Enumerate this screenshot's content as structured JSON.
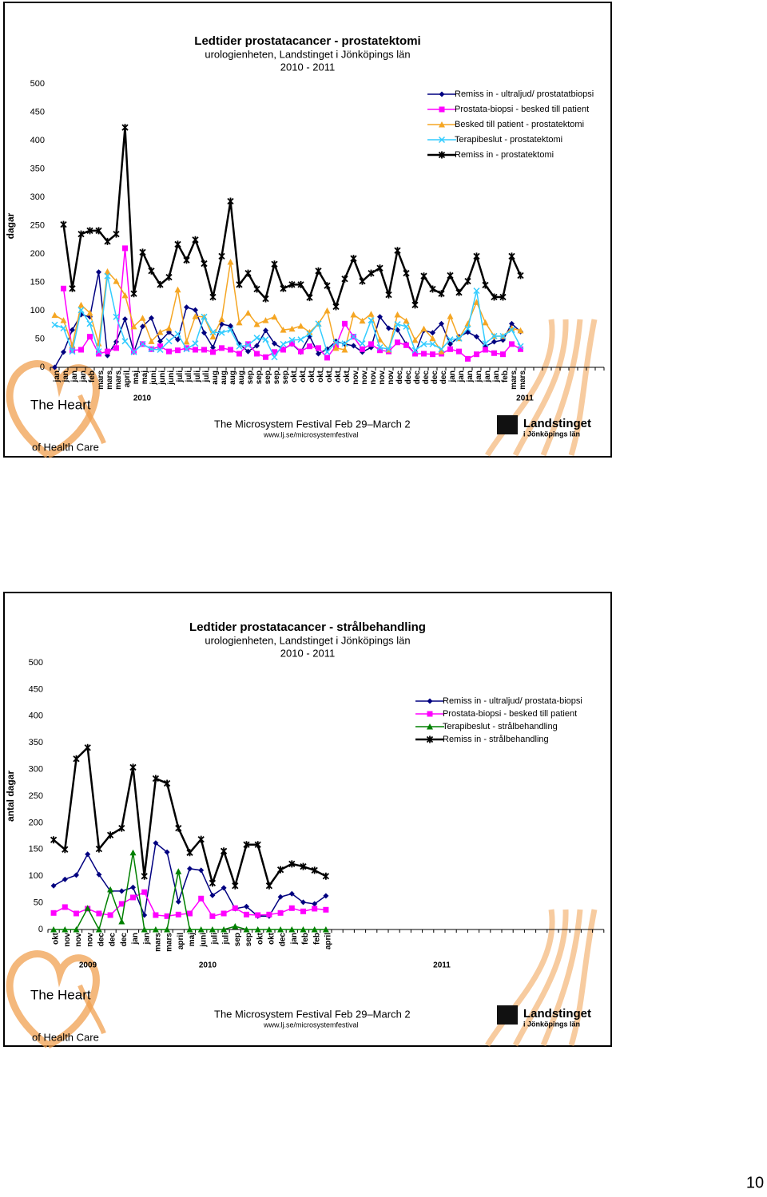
{
  "chart_data": [
    {
      "type": "line",
      "title": "Ledtider prostatacancer - prostatektomi",
      "subtitle": "urologienheten, Landstinget i Jönköpings län",
      "period": "2010 - 2011",
      "y_label": "dagar",
      "year_labels": [
        "2010",
        "2011"
      ],
      "ylim": [
        0,
        500
      ],
      "yticks": [
        0,
        50,
        100,
        150,
        200,
        250,
        300,
        350,
        400,
        450,
        500
      ],
      "grid": false,
      "legend": "upper right",
      "categories": [
        "jan",
        "jan",
        "jan",
        "jan",
        "feb",
        "mars",
        "mars",
        "mars",
        "april",
        "maj",
        "maj",
        "juni",
        "juni",
        "juni",
        "juli",
        "juli",
        "juli",
        "juli",
        "aug",
        "aug",
        "aug",
        "aug",
        "sep",
        "sep",
        "sep",
        "sep",
        "sep",
        "okt",
        "okt",
        "okt",
        "okt",
        "okt",
        "okt",
        "okt",
        "nov",
        "nov",
        "nov",
        "nov",
        "nov",
        "dec",
        "dec",
        "dec",
        "dec",
        "dec",
        "dec",
        "jan",
        "jan",
        "jan",
        "jan",
        "jan",
        "jan",
        "feb",
        "mars",
        "mars",
        null,
        null,
        null,
        null,
        null,
        null,
        null,
        null,
        null
      ],
      "series": [
        {
          "name": "Remiss in - ultraljud/ prostatatbiopsi",
          "color": "#000080",
          "marker": "diamond",
          "values": [
            0,
            27,
            66,
            93,
            89,
            168,
            21,
            45,
            85,
            27,
            72,
            87,
            46,
            62,
            49,
            106,
            101,
            61,
            35,
            76,
            73,
            41,
            28,
            38,
            65,
            42,
            32,
            41,
            27,
            55,
            24,
            32,
            46,
            41,
            38,
            27,
            35,
            89,
            69,
            66,
            41,
            24,
            65,
            61,
            77,
            41,
            54,
            62,
            54,
            37,
            45,
            48,
            77,
            63,
            null,
            null,
            null,
            null,
            null,
            null,
            null,
            null,
            null
          ]
        },
        {
          "name": "Prostata-biopsi - besked till patient",
          "color": "#ff00ff",
          "marker": "square",
          "values": [
            null,
            139,
            30,
            31,
            54,
            24,
            28,
            34,
            210,
            28,
            41,
            32,
            37,
            28,
            30,
            34,
            31,
            31,
            27,
            34,
            31,
            24,
            41,
            24,
            18,
            27,
            31,
            42,
            28,
            37,
            34,
            17,
            38,
            77,
            54,
            32,
            41,
            30,
            28,
            44,
            39,
            24,
            24,
            23,
            24,
            32,
            28,
            15,
            23,
            31,
            25,
            23,
            41,
            32,
            null,
            null,
            null,
            null,
            null,
            null,
            null,
            null,
            null
          ]
        },
        {
          "name": "Besked till patient - prostatektomi",
          "color": "#f5a623",
          "marker": "triangle",
          "values": [
            92,
            83,
            39,
            110,
            96,
            42,
            169,
            152,
            127,
            72,
            87,
            46,
            62,
            69,
            137,
            45,
            90,
            89,
            54,
            85,
            186,
            79,
            96,
            76,
            83,
            89,
            66,
            68,
            73,
            62,
            77,
            100,
            34,
            31,
            93,
            82,
            94,
            49,
            31,
            93,
            82,
            48,
            68,
            51,
            28,
            90,
            51,
            77,
            115,
            79,
            55,
            55,
            69,
            65,
            null,
            null,
            null,
            null,
            null,
            null,
            null,
            null,
            null
          ]
        },
        {
          "name": "Terapibeslut - prostatektomi",
          "color": "#33ccff",
          "marker": "x",
          "values": [
            75,
            69,
            28,
            101,
            77,
            28,
            161,
            89,
            46,
            27,
            41,
            32,
            31,
            46,
            59,
            32,
            42,
            89,
            62,
            61,
            66,
            37,
            39,
            52,
            49,
            18,
            41,
            48,
            49,
            59,
            77,
            27,
            44,
            42,
            54,
            42,
            83,
            35,
            32,
            76,
            72,
            30,
            41,
            41,
            32,
            49,
            51,
            68,
            135,
            42,
            55,
            55,
            66,
            37,
            null,
            null,
            null,
            null,
            null,
            null,
            null,
            null,
            null
          ]
        },
        {
          "name": "Remiss in - prostatektomi",
          "color": "#000000",
          "marker": "star",
          "values": [
            null,
            252,
            139,
            235,
            241,
            241,
            222,
            235,
            423,
            130,
            203,
            170,
            146,
            159,
            217,
            189,
            225,
            183,
            124,
            196,
            293,
            146,
            166,
            138,
            121,
            182,
            139,
            146,
            146,
            123,
            170,
            144,
            107,
            156,
            192,
            152,
            166,
            175,
            128,
            206,
            166,
            110,
            161,
            138,
            130,
            162,
            132,
            152,
            196,
            145,
            124,
            124,
            196,
            162,
            null,
            null,
            null,
            null,
            null,
            null,
            null,
            null,
            null
          ]
        }
      ]
    },
    {
      "type": "line",
      "title": "Ledtider prostatacancer - strålbehandling",
      "subtitle": "urologienheten, Landstinget i Jönköpings län",
      "period": "2010 - 2011",
      "y_label": "antal dagar",
      "year_labels": [
        "2009",
        "2010",
        "2011"
      ],
      "ylim": [
        0,
        500
      ],
      "yticks": [
        0,
        50,
        100,
        150,
        200,
        250,
        300,
        350,
        400,
        450,
        500
      ],
      "grid": false,
      "legend": "upper right",
      "categories": [
        "okt",
        "nov",
        "nov",
        "nov",
        "dec",
        "dec",
        "dec",
        "jan",
        "jan",
        "mars",
        "mars",
        "april",
        "maj",
        "juni",
        "juli",
        "juli",
        "sep",
        "sep",
        "okt",
        "okt",
        "dec",
        "jan",
        "feb",
        "feb",
        "april",
        null,
        null,
        null,
        null,
        null,
        null,
        null,
        null,
        null,
        null,
        null,
        null,
        null,
        null,
        null,
        null,
        null,
        null,
        null,
        null,
        null,
        null,
        null,
        null
      ],
      "series": [
        {
          "name": "Remiss in - ultraljud/ prostata-biopsi",
          "color": "#000080",
          "marker": "diamond",
          "values": [
            82,
            94,
            102,
            141,
            103,
            72,
            72,
            79,
            27,
            162,
            145,
            52,
            114,
            111,
            64,
            78,
            39,
            43,
            25,
            25,
            61,
            67,
            51,
            48,
            63,
            null,
            null,
            null,
            null,
            null,
            null,
            null,
            null,
            null,
            null,
            null,
            null,
            null,
            null,
            null,
            null,
            null,
            null,
            null,
            null,
            null,
            null,
            null,
            null
          ]
        },
        {
          "name": "Prostata-biopsi - besked till patient",
          "color": "#ff00ff",
          "marker": "square",
          "values": [
            31,
            42,
            30,
            39,
            30,
            27,
            48,
            60,
            70,
            27,
            25,
            28,
            30,
            58,
            25,
            30,
            40,
            28,
            27,
            28,
            31,
            40,
            34,
            39,
            37,
            null,
            null,
            null,
            null,
            null,
            null,
            null,
            null,
            null,
            null,
            null,
            null,
            null,
            null,
            null,
            null,
            null,
            null,
            null,
            null,
            null,
            null,
            null,
            null
          ]
        },
        {
          "name": "Terapibeslut - strålbehandling",
          "color": "#008000",
          "marker": "triangle",
          "values": [
            0,
            0,
            0,
            40,
            0,
            75,
            15,
            144,
            0,
            0,
            0,
            109,
            0,
            0,
            0,
            0,
            6,
            0,
            0,
            0,
            0,
            0,
            0,
            0,
            0,
            null,
            null,
            null,
            null,
            null,
            null,
            null,
            null,
            null,
            null,
            null,
            null,
            null,
            null,
            null,
            null,
            null,
            null,
            null,
            null,
            null,
            null,
            null,
            null
          ]
        },
        {
          "name": "Remiss in - strålbehandling",
          "color": "#000000",
          "marker": "star",
          "values": [
            168,
            150,
            320,
            341,
            151,
            177,
            190,
            304,
            100,
            283,
            274,
            190,
            144,
            169,
            87,
            147,
            82,
            159,
            159,
            82,
            112,
            123,
            118,
            111,
            100,
            null,
            null,
            null,
            null,
            null,
            null,
            null,
            null,
            null,
            null,
            null,
            null,
            null,
            null,
            null,
            null,
            null,
            null,
            null,
            null,
            null,
            null,
            null,
            null
          ]
        }
      ]
    }
  ],
  "slide_footer": {
    "logo_top": "The Heart",
    "logo_bottom": "of Health Care",
    "festival": "The Microsystem Festival Feb 29–March 2",
    "url": "www.lj.se/microsystemfestival",
    "org": "Landstinget",
    "org_sub": "i Jönköpings län"
  },
  "page_number": "10"
}
